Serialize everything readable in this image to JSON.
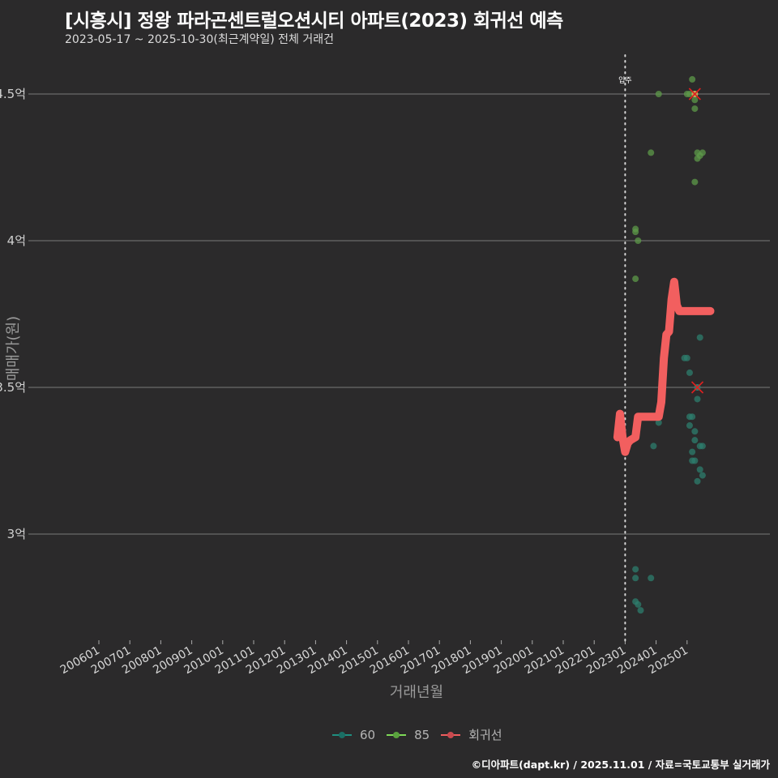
{
  "header": {
    "title": "[시흥시] 정왕 파라곤센트럴오션시티 아파트(2023) 회귀선 예측",
    "subtitle": "2023-05-17 ~ 2025-10-30(최근계약일) 전체 거래건"
  },
  "footer": {
    "credit": "©디아파트(dapt.kr) / 2025.11.01 / 자료=국토교통부 실거래가"
  },
  "legend": {
    "items": [
      {
        "label": "60",
        "color": "#1f8f80"
      },
      {
        "label": "85",
        "color": "#7ed957"
      },
      {
        "label": "회귀선",
        "color": "#f05d5e"
      }
    ]
  },
  "colors": {
    "background": "#2b2a2b",
    "grid": "#7a7a7a",
    "series_60": "#2e7d6e",
    "series_85": "#5e9a4a",
    "regression": "#f25f5f",
    "marker_x": "#e02020"
  },
  "chart_data": {
    "type": "scatter",
    "title": "[시흥시] 정왕 파라곤센트럴오션시티 아파트(2023) 회귀선 예측",
    "subtitle": "2023-05-17 ~ 2025-10-30(최근계약일) 전체 거래건",
    "xlabel": "거래년월",
    "ylabel": "매매가(원)",
    "x_ticks": [
      "200601",
      "200701",
      "200801",
      "200901",
      "201001",
      "201101",
      "201201",
      "201301",
      "201401",
      "201501",
      "201601",
      "201701",
      "201801",
      "201901",
      "202001",
      "202101",
      "202201",
      "202301",
      "202401",
      "202501"
    ],
    "y_ticks": [
      "3억",
      "3.5억",
      "4억",
      "4.5억"
    ],
    "y_tick_values": [
      3.0,
      3.5,
      4.0,
      4.5
    ],
    "ylim": [
      2.65,
      4.63
    ],
    "grid": true,
    "legend_position": "bottom",
    "annotation": {
      "label": "입주",
      "x": "202301",
      "style": "dotted vertical line"
    },
    "series": [
      {
        "name": "60",
        "points": [
          [
            "2023-05",
            2.88
          ],
          [
            "2023-05",
            2.85
          ],
          [
            "2023-05",
            2.77
          ],
          [
            "2023-06",
            2.76
          ],
          [
            "2023-07",
            2.74
          ],
          [
            "2023-11",
            2.85
          ],
          [
            "2023-12",
            3.3
          ],
          [
            "2024-02",
            3.38
          ],
          [
            "2024-12",
            3.6
          ],
          [
            "2025-01",
            3.6
          ],
          [
            "2025-02",
            3.55
          ],
          [
            "2025-02",
            3.4
          ],
          [
            "2025-02",
            3.37
          ],
          [
            "2025-03",
            3.4
          ],
          [
            "2025-03",
            3.28
          ],
          [
            "2025-03",
            3.25
          ],
          [
            "2025-04",
            3.25
          ],
          [
            "2025-04",
            3.35
          ],
          [
            "2025-04",
            3.32
          ],
          [
            "2025-05",
            3.5
          ],
          [
            "2025-05",
            3.46
          ],
          [
            "2025-06",
            3.3
          ],
          [
            "2025-07",
            3.3
          ],
          [
            "2025-06",
            3.22
          ],
          [
            "2025-07",
            3.2
          ],
          [
            "2025-05",
            3.18
          ],
          [
            "2025-06",
            3.67
          ]
        ]
      },
      {
        "name": "85",
        "points": [
          [
            "2023-05",
            4.04
          ],
          [
            "2023-05",
            4.03
          ],
          [
            "2023-06",
            4.0
          ],
          [
            "2023-05",
            3.87
          ],
          [
            "2023-11",
            4.3
          ],
          [
            "2024-02",
            4.5
          ],
          [
            "2025-01",
            4.5
          ],
          [
            "2025-02",
            4.5
          ],
          [
            "2025-03",
            4.55
          ],
          [
            "2025-04",
            4.5
          ],
          [
            "2025-04",
            4.48
          ],
          [
            "2025-04",
            4.45
          ],
          [
            "2025-04",
            4.2
          ],
          [
            "2025-05",
            4.3
          ],
          [
            "2025-05",
            4.28
          ],
          [
            "2025-06",
            4.29
          ],
          [
            "2025-07",
            4.3
          ]
        ]
      },
      {
        "name": "회귀선",
        "points": [
          [
            "2022-10",
            3.33
          ],
          [
            "2022-11",
            3.41
          ],
          [
            "2022-12",
            3.33
          ],
          [
            "2023-01",
            3.28
          ],
          [
            "2023-02",
            3.31
          ],
          [
            "2023-03",
            3.32
          ],
          [
            "2023-05",
            3.33
          ],
          [
            "2023-06",
            3.4
          ],
          [
            "2023-08",
            3.4
          ],
          [
            "2023-11",
            3.4
          ],
          [
            "2024-02",
            3.4
          ],
          [
            "2024-03",
            3.45
          ],
          [
            "2024-04",
            3.6
          ],
          [
            "2024-05",
            3.68
          ],
          [
            "2024-06",
            3.69
          ],
          [
            "2024-07",
            3.8
          ],
          [
            "2024-08",
            3.86
          ],
          [
            "2024-09",
            3.78
          ],
          [
            "2024-10",
            3.76
          ],
          [
            "2025-03",
            3.76
          ],
          [
            "2025-08",
            3.76
          ],
          [
            "2025-10",
            3.76
          ]
        ]
      }
    ],
    "highlighted_points": [
      {
        "series": "85",
        "x": "2025-04",
        "y": 4.5,
        "marker": "x"
      },
      {
        "series": "60",
        "x": "2025-05",
        "y": 3.5,
        "marker": "x"
      }
    ]
  }
}
